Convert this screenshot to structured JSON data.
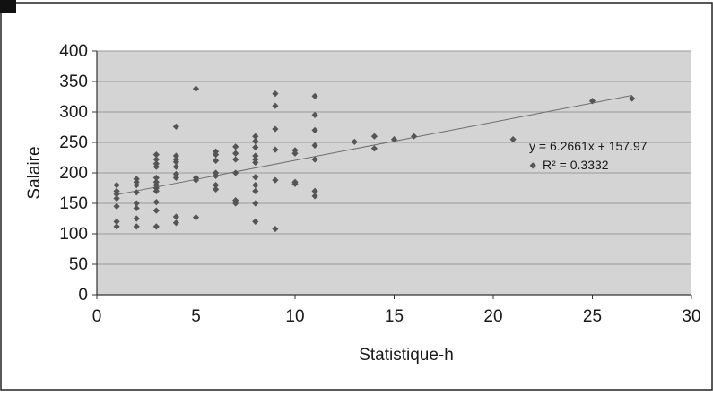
{
  "chart_data": {
    "type": "scatter",
    "xlabel": "Statistique-h",
    "ylabel": "Salaire",
    "xlim": [
      0,
      30
    ],
    "ylim": [
      0,
      400
    ],
    "x_ticks": [
      "0",
      "5",
      "10",
      "15",
      "20",
      "25",
      "30"
    ],
    "y_ticks": [
      "0",
      "50",
      "100",
      "150",
      "200",
      "250",
      "300",
      "350",
      "400"
    ],
    "grid": "horizontal",
    "plot_background": "#d4d4d4",
    "marker_color": "#555555",
    "trendline": {
      "slope": 6.2661,
      "intercept": 157.97,
      "equation": "y = 6.2661x + 157.97",
      "r2_label": "R² = 0.3332"
    },
    "points": [
      [
        1,
        180
      ],
      [
        1,
        170
      ],
      [
        1,
        165
      ],
      [
        1,
        158
      ],
      [
        1,
        145
      ],
      [
        1,
        120
      ],
      [
        1,
        112
      ],
      [
        2,
        190
      ],
      [
        2,
        185
      ],
      [
        2,
        180
      ],
      [
        2,
        168
      ],
      [
        2,
        150
      ],
      [
        2,
        142
      ],
      [
        2,
        125
      ],
      [
        2,
        112
      ],
      [
        3,
        230
      ],
      [
        3,
        222
      ],
      [
        3,
        215
      ],
      [
        3,
        210
      ],
      [
        3,
        192
      ],
      [
        3,
        185
      ],
      [
        3,
        180
      ],
      [
        3,
        175
      ],
      [
        3,
        170
      ],
      [
        3,
        152
      ],
      [
        3,
        138
      ],
      [
        3,
        112
      ],
      [
        4,
        276
      ],
      [
        4,
        228
      ],
      [
        4,
        222
      ],
      [
        4,
        218
      ],
      [
        4,
        210
      ],
      [
        4,
        198
      ],
      [
        4,
        192
      ],
      [
        4,
        128
      ],
      [
        4,
        118
      ],
      [
        5,
        338
      ],
      [
        5,
        192
      ],
      [
        5,
        188
      ],
      [
        5,
        127
      ],
      [
        6,
        235
      ],
      [
        6,
        230
      ],
      [
        6,
        220
      ],
      [
        6,
        200
      ],
      [
        6,
        195
      ],
      [
        6,
        180
      ],
      [
        6,
        173
      ],
      [
        7,
        243
      ],
      [
        7,
        232
      ],
      [
        7,
        222
      ],
      [
        7,
        200
      ],
      [
        7,
        155
      ],
      [
        7,
        150
      ],
      [
        8,
        260
      ],
      [
        8,
        252
      ],
      [
        8,
        242
      ],
      [
        8,
        228
      ],
      [
        8,
        222
      ],
      [
        8,
        217
      ],
      [
        8,
        193
      ],
      [
        8,
        180
      ],
      [
        8,
        170
      ],
      [
        8,
        150
      ],
      [
        8,
        120
      ],
      [
        9,
        330
      ],
      [
        9,
        310
      ],
      [
        9,
        272
      ],
      [
        9,
        238
      ],
      [
        9,
        188
      ],
      [
        9,
        108
      ],
      [
        10,
        237
      ],
      [
        10,
        232
      ],
      [
        10,
        185
      ],
      [
        10,
        182
      ],
      [
        11,
        326
      ],
      [
        11,
        295
      ],
      [
        11,
        270
      ],
      [
        11,
        245
      ],
      [
        11,
        222
      ],
      [
        11,
        170
      ],
      [
        11,
        162
      ],
      [
        13,
        251
      ],
      [
        14,
        260
      ],
      [
        14,
        240
      ],
      [
        15,
        255
      ],
      [
        16,
        260
      ],
      [
        21,
        255
      ],
      [
        22,
        212
      ],
      [
        25,
        318
      ],
      [
        27,
        322
      ]
    ]
  }
}
